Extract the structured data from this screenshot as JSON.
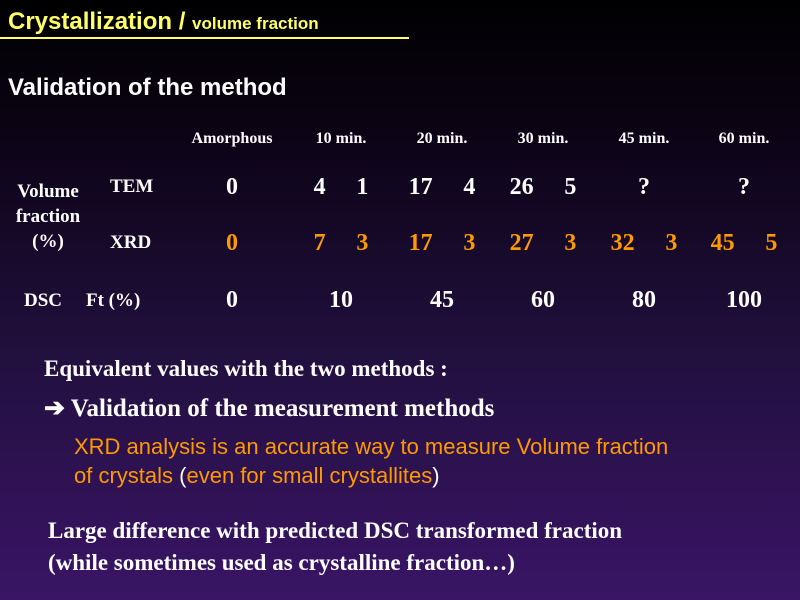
{
  "title": {
    "main": "Crystallization / ",
    "sub": "volume fraction"
  },
  "subtitle": "Validation of the method",
  "table": {
    "headers": [
      "Amorphous",
      "10 min.",
      "20 min.",
      "30 min.",
      "45 min.",
      "60 min."
    ],
    "row_group_label_1": "Volume",
    "row_group_label_2": "fraction",
    "row_group_label_3": "(%)",
    "tem": {
      "label": "TEM",
      "values": [
        "0",
        "4  1",
        "17  4",
        "26  5",
        "?",
        "?"
      ]
    },
    "xrd": {
      "label": "XRD",
      "values": [
        "0",
        "7  3",
        "17  3",
        "27  3",
        "32  3",
        "45  5"
      ]
    },
    "dsc": {
      "label": "DSC",
      "sublabel": "Ft (%)",
      "values": [
        "0",
        "10",
        "45",
        "60",
        "80",
        "100"
      ]
    }
  },
  "equivalent_text": "Equivalent values with the two methods :",
  "arrow_symbol": "➔",
  "validation_text": "Validation of the measurement methods",
  "xrd_analysis_line1": "XRD analysis is an accurate way to measure Volume fraction",
  "xrd_analysis_line2_a": "of crystals ",
  "xrd_analysis_line2_b": "(",
  "xrd_analysis_line2_c": "even for small crystallites",
  "xrd_analysis_line2_d": ")",
  "large_diff_line1": "Large difference with predicted DSC transformed fraction",
  "large_diff_line2": "(while sometimes used as crystalline fraction…)",
  "colors": {
    "title": "#ffff66",
    "highlight": "#ff9900",
    "text": "#ffffff"
  }
}
